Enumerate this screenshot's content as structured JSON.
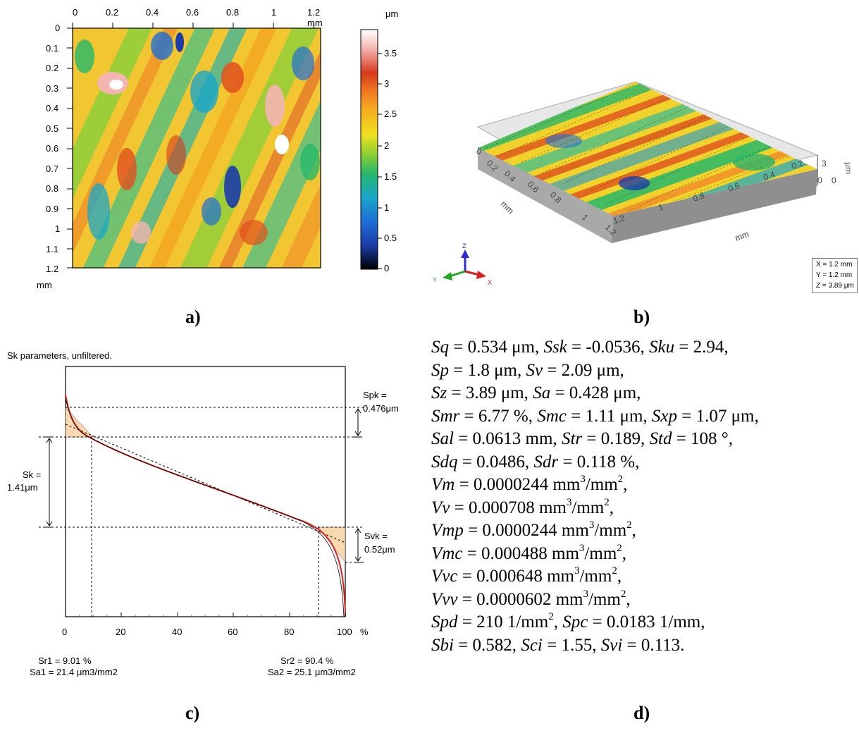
{
  "panels": {
    "a": {
      "label": "a)",
      "x_unit": "1.2 mm",
      "y_unit": "mm",
      "colorbar_unit": "μm",
      "x_ticks": [
        "0",
        "0.2",
        "0.4",
        "0.6",
        "0.8",
        "1"
      ],
      "y_ticks": [
        "0",
        "0.1",
        "0.2",
        "0.3",
        "0.4",
        "0.5",
        "0.6",
        "0.7",
        "0.8",
        "0.9",
        "1",
        "1.1",
        "1.2"
      ],
      "colorbar_ticks": [
        "3.5",
        "3",
        "2.5",
        "2",
        "1.5",
        "1",
        "0.5",
        "0"
      ]
    },
    "b": {
      "label": "b)",
      "axis_unit_mm_1": "mm",
      "axis_unit_mm_2": "mm",
      "z_unit": "μm",
      "z_ticks": [
        "3",
        "0"
      ],
      "edge_ticks_left": [
        "0",
        "0.2",
        "0.4",
        "0.6",
        "0.8",
        "1",
        "1.2"
      ],
      "edge_ticks_right": [
        "0",
        "0.2",
        "0.4",
        "0.6",
        "0.8",
        "1",
        "1.2"
      ],
      "axes": {
        "z": "Z",
        "y": "Y",
        "x": "X"
      },
      "scale_box": [
        "X = 1.2 mm",
        "Y = 1.2 mm",
        "Z = 3.89 μm"
      ]
    },
    "c": {
      "label": "c)",
      "caption": "Sk parameters, unfiltered.",
      "spk_label": "Spk =",
      "spk_value": "0.476μm",
      "sk_label": "Sk =",
      "sk_value": "1.41μm",
      "svk_label": "Svk =",
      "svk_value": "0.52μm",
      "x_ticks": [
        "0",
        "20",
        "40",
        "60",
        "80",
        "100"
      ],
      "x_unit": "%",
      "sr1": "Sr1 = 9.01 %",
      "sa1": "Sa1 = 21.4 μm3/mm2",
      "sr2": "Sr2 = 90.4 %",
      "sa2": "Sa2 = 25.1 μm3/mm2"
    },
    "d": {
      "label": "d)"
    }
  },
  "parameters_html": [
    "<i>Sq</i> = 0.534 μm, <i>Ssk</i> = -0.0536, <i>Sku</i> = 2.94,",
    "<i>Sp</i> = 1.8 μm, <i>Sv</i> = 2.09 μm,",
    "<i>Sz</i> = 3.89 μm, <i>Sa</i> = 0.428 μm,",
    "<i>Smr</i> = 6.77 %, <i>Smc</i> = 1.11 μm, <i>Sxp</i> = 1.07 μm,",
    "<i>Sal</i> = 0.0613 mm, <i>Str</i> = 0.189, <i>Std</i> = 108 °,",
    "<i>Sdq</i> = 0.0486, <i>Sdr</i> = 0.118 %,",
    "<i>Vm</i> = 0.0000244 mm<sup>3</sup>/mm<sup>2</sup>,",
    "<i>Vv</i> = 0.000708 mm<sup>3</sup>/mm<sup>2</sup>,",
    "<i>Vmp</i> = 0.0000244 mm<sup>3</sup>/mm<sup>2</sup>,",
    "<i>Vmc</i> = 0.000488 mm<sup>3</sup>/mm<sup>2</sup>,",
    "<i>Vvc</i> = 0.000648 mm<sup>3</sup>/mm<sup>2</sup>,",
    "<i>Vvv</i> = 0.0000602 mm<sup>3</sup>/mm<sup>2</sup>,",
    "<i>Spd</i> = 210 1/mm<sup>2</sup>, <i>Spc</i> = 0.0183 1/mm,",
    "<i>Sbi</i> = 0.582, <i>Sci</i> = 1.55, <i>Svi</i> = 0.113."
  ],
  "colors": {
    "curve": "#e0201c",
    "triangle_fill": "#fbd9b0",
    "colormap": [
      "#000000",
      "#1c3ca8",
      "#1e6fd6",
      "#19a6c9",
      "#27b86a",
      "#8ccf2f",
      "#f0e020",
      "#f5b020",
      "#f07a20",
      "#d63a1c",
      "#f4b5b0",
      "#ffffff"
    ]
  }
}
